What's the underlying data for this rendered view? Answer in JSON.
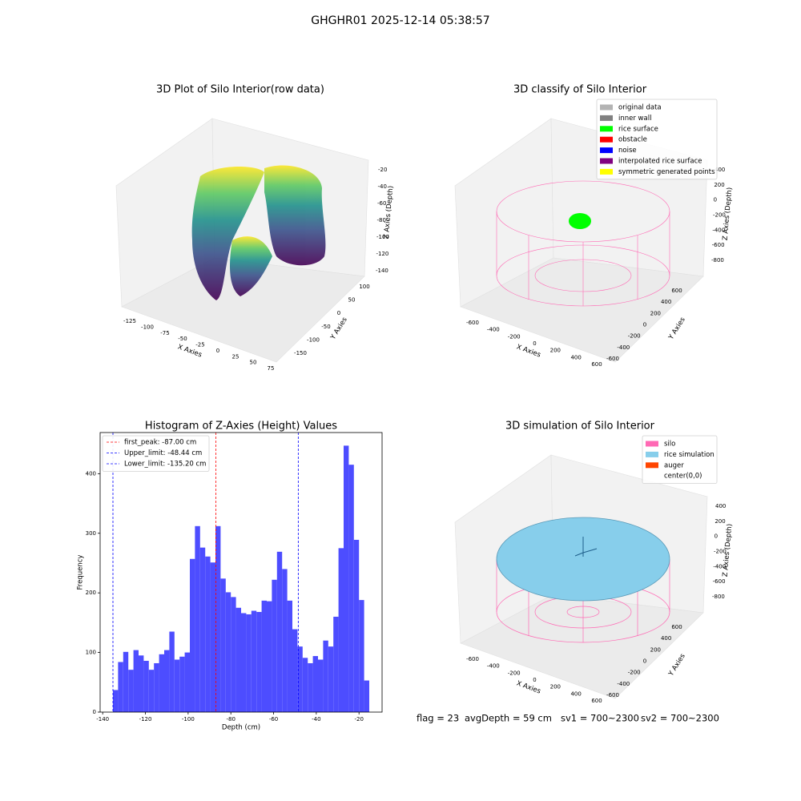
{
  "title": "GHGHR01 2025-12-14 05:38:57",
  "chart_data": [
    {
      "type": "scatter3d",
      "title": "3D Plot of Silo Interior(row data)",
      "xlabel": "X Axies",
      "ylabel": "Y Axies",
      "zlabel": "Z Axies (Depth)",
      "xticks": [
        -125,
        -100,
        -75,
        -50,
        -25,
        0,
        25,
        50,
        75
      ],
      "yticks": [
        100,
        50,
        0,
        -50,
        -100,
        -150
      ],
      "zticks": [
        -20,
        -40,
        -60,
        -80,
        -100,
        -120,
        -140
      ]
    },
    {
      "type": "scatter3d",
      "title": "3D classify of Silo Interior",
      "xlabel": "X Axies",
      "ylabel": "Y Axies",
      "zlabel": "Z Axies (Depth)",
      "xticks": [
        -600,
        -400,
        -200,
        0,
        200,
        400,
        600
      ],
      "yticks": [
        600,
        400,
        200,
        0,
        -200,
        -400,
        -600
      ],
      "zticks": [
        400,
        200,
        0,
        -200,
        -400,
        -600,
        -800
      ],
      "legend": [
        {
          "name": "original data",
          "color": "#b3b3b3"
        },
        {
          "name": "inner wall",
          "color": "#808080"
        },
        {
          "name": "rice surface",
          "color": "#00ff00"
        },
        {
          "name": "obstacle",
          "color": "#ff0000"
        },
        {
          "name": "noise",
          "color": "#0000ff"
        },
        {
          "name": "interpolated rice surface",
          "color": "#800080"
        },
        {
          "name": "symmetric generated points",
          "color": "#ffff00"
        }
      ]
    },
    {
      "type": "histogram",
      "title": "Histogram of Z-Axies (Height) Values",
      "xlabel": "Depth (cm)",
      "ylabel": "Frequency",
      "color": "#4d4dff",
      "bins": [
        -135.2,
        -132.8,
        -130.4,
        -128,
        -125.6,
        -123.2,
        -120.8,
        -118.4,
        -116,
        -113.6,
        -111.2,
        -108.8,
        -106.4,
        -104,
        -101.6,
        -99.2,
        -96.8,
        -94.4,
        -92,
        -89.6,
        -87.2,
        -84.8,
        -82.4,
        -80,
        -77.6,
        -75.2,
        -72.8,
        -70.4,
        -68,
        -65.6,
        -63.2,
        -60.8,
        -58.4,
        -56,
        -53.6,
        -51.2,
        -48.8,
        -46.4,
        -44,
        -41.6,
        -39.2,
        -36.8,
        -34.4,
        -32,
        -29.6,
        -27.2,
        -24.8,
        -22.4,
        -20,
        -17.6,
        -15.2
      ],
      "values": [
        37,
        84,
        101,
        71,
        104,
        95,
        86,
        71,
        82,
        97,
        104,
        135,
        88,
        93,
        100,
        257,
        312,
        276,
        261,
        251,
        312,
        224,
        201,
        193,
        175,
        166,
        164,
        170,
        168,
        187,
        186,
        222,
        269,
        240,
        187,
        139,
        110,
        91,
        82,
        94,
        88,
        120,
        110,
        160,
        275,
        447,
        415,
        289,
        188,
        53
      ],
      "xlim": [
        -141.2,
        -9.2
      ],
      "ylim": [
        0,
        469
      ],
      "xticks": [
        -140,
        -120,
        -100,
        -80,
        -60,
        -40,
        -20
      ],
      "yticks": [
        0,
        100,
        200,
        300,
        400
      ],
      "lines": [
        {
          "label": "first_peak: -87.00 cm",
          "value": -87.0,
          "color": "#ff0000"
        },
        {
          "label": "Upper_limit: -48.44 cm",
          "value": -48.44,
          "color": "#0000ff"
        },
        {
          "label": "Lower_limit: -135.20 cm",
          "value": -135.2,
          "color": "#0000ff"
        }
      ],
      "legend_position": "upper left"
    },
    {
      "type": "scatter3d",
      "title": "3D simulation of Silo Interior",
      "xlabel": "X Axies",
      "ylabel": "Y Axies",
      "zlabel": "Z Axies (Depth)",
      "xticks": [
        -600,
        -400,
        -200,
        0,
        200,
        400,
        600
      ],
      "yticks": [
        600,
        400,
        200,
        0,
        -200,
        -400,
        -600
      ],
      "zticks": [
        400,
        200,
        0,
        -200,
        -400,
        -600,
        -800
      ],
      "legend": [
        {
          "name": "silo",
          "color": "#ff69b4"
        },
        {
          "name": "rice simulation",
          "color": "#87ceeb"
        },
        {
          "name": "auger",
          "color": "#ff4500"
        },
        {
          "name": "center(0,0)",
          "color": "#ffffff"
        }
      ]
    }
  ],
  "status": [
    "flag = 23",
    "avgDepth = 59 cm",
    "sv1 = 700~2300",
    "sv2 = 700~2300"
  ]
}
